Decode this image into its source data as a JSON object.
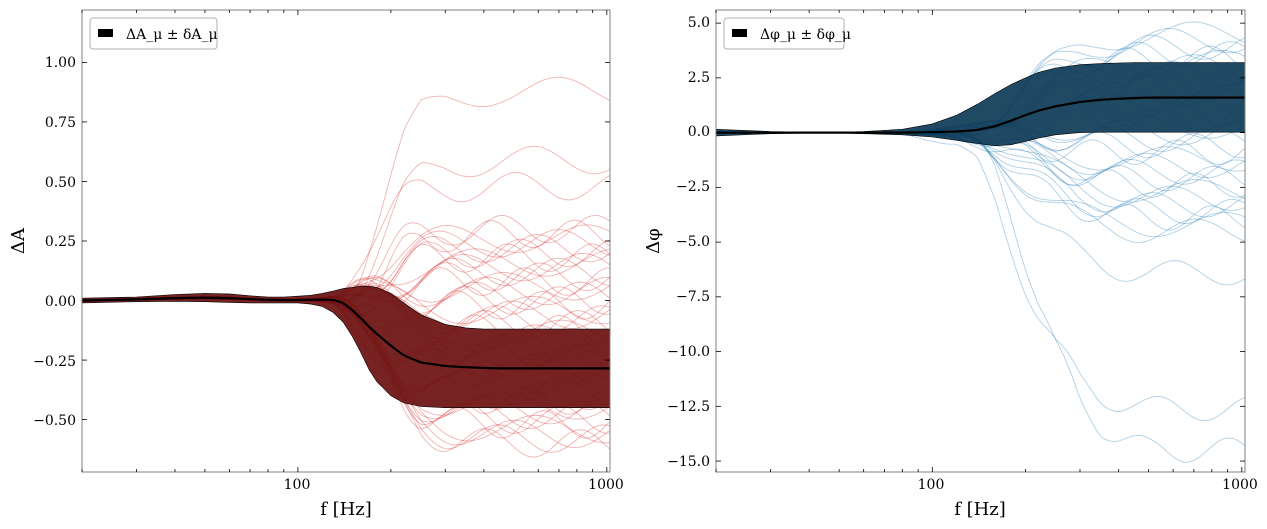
{
  "chart_data": [
    {
      "type": "line",
      "xscale": "log",
      "xlim": [
        20,
        1024
      ],
      "ylim": [
        -0.72,
        1.22
      ],
      "xlabel": "f [Hz]",
      "ylabel": "ΔA",
      "xticks": [
        100,
        1000
      ],
      "xtick_labels": [
        "100",
        "1000"
      ],
      "yticks": [
        -0.5,
        -0.25,
        0.0,
        0.25,
        0.5,
        0.75,
        1.0
      ],
      "ytick_labels": [
        "−0.50",
        "−0.25",
        "0.00",
        "0.25",
        "0.50",
        "0.75",
        "1.00"
      ],
      "legend": {
        "label": "ΔA_μ ± δA_μ",
        "position": "top-left"
      },
      "draw_color": "#d62728",
      "band_color": "#6b1010",
      "mean_curve": {
        "x": [
          20,
          30,
          40,
          50,
          60,
          70,
          80,
          90,
          100,
          110,
          120,
          130,
          140,
          150,
          160,
          170,
          180,
          200,
          220,
          250,
          300,
          350,
          400,
          450,
          500,
          600,
          700,
          800,
          1024
        ],
        "y": [
          0.0,
          0.005,
          0.01,
          0.012,
          0.01,
          0.006,
          0.003,
          0.002,
          0.002,
          0.003,
          0.004,
          0.003,
          -0.01,
          -0.04,
          -0.075,
          -0.11,
          -0.14,
          -0.19,
          -0.23,
          -0.26,
          -0.275,
          -0.28,
          -0.283,
          -0.285,
          -0.285,
          -0.285,
          -0.285,
          -0.285,
          -0.285
        ]
      },
      "band_upper": {
        "x": [
          20,
          30,
          40,
          50,
          60,
          70,
          80,
          90,
          100,
          110,
          120,
          130,
          140,
          150,
          160,
          170,
          180,
          200,
          220,
          250,
          300,
          350,
          400,
          450,
          500,
          600,
          700,
          800,
          1024
        ],
        "y": [
          0.01,
          0.015,
          0.025,
          0.03,
          0.028,
          0.02,
          0.015,
          0.015,
          0.018,
          0.022,
          0.03,
          0.04,
          0.05,
          0.055,
          0.06,
          0.06,
          0.055,
          0.03,
          -0.01,
          -0.06,
          -0.1,
          -0.115,
          -0.12,
          -0.12,
          -0.12,
          -0.12,
          -0.12,
          -0.12,
          -0.12
        ]
      },
      "band_lower": {
        "x": [
          20,
          30,
          40,
          50,
          60,
          70,
          80,
          90,
          100,
          110,
          120,
          130,
          140,
          150,
          160,
          170,
          180,
          200,
          220,
          250,
          300,
          350,
          400,
          450,
          500,
          600,
          700,
          800,
          1024
        ],
        "y": [
          -0.01,
          -0.005,
          -0.003,
          -0.005,
          -0.008,
          -0.01,
          -0.01,
          -0.01,
          -0.01,
          -0.015,
          -0.025,
          -0.05,
          -0.09,
          -0.15,
          -0.22,
          -0.29,
          -0.34,
          -0.4,
          -0.43,
          -0.445,
          -0.45,
          -0.45,
          -0.45,
          -0.45,
          -0.45,
          -0.45,
          -0.45,
          -0.45,
          -0.45
        ]
      },
      "draws_plateau_values": [
        0.88,
        0.59,
        0.48,
        0.3,
        0.28,
        0.26,
        0.24,
        0.22,
        0.2,
        0.18,
        0.16,
        0.14,
        0.12,
        0.1,
        0.08,
        0.06,
        0.04,
        0.02,
        0.0,
        -0.02,
        -0.04,
        -0.06,
        -0.08,
        -0.1,
        -0.12,
        -0.14,
        -0.16,
        -0.18,
        -0.2,
        -0.22,
        -0.24,
        -0.26,
        -0.28,
        -0.3,
        -0.32,
        -0.34,
        -0.36,
        -0.38,
        -0.4,
        -0.42,
        -0.44,
        -0.46,
        -0.48,
        -0.5,
        -0.52,
        -0.54,
        -0.56,
        -0.58,
        -0.6
      ]
    },
    {
      "type": "line",
      "xscale": "log",
      "xlim": [
        20,
        1024
      ],
      "ylim": [
        -15.5,
        5.6
      ],
      "xlabel": "f [Hz]",
      "ylabel": "Δφ",
      "xticks": [
        100,
        1000
      ],
      "xtick_labels": [
        "100",
        "1000"
      ],
      "yticks": [
        -15.0,
        -12.5,
        -10.0,
        -7.5,
        -5.0,
        -2.5,
        0.0,
        2.5,
        5.0
      ],
      "ytick_labels": [
        "−15.0",
        "−12.5",
        "−10.0",
        "−7.5",
        "−5.0",
        "−2.5",
        "0.0",
        "2.5",
        "5.0"
      ],
      "legend": {
        "label": "Δφ_μ ± δφ_μ",
        "position": "top-left"
      },
      "draw_color": "#1f77b4",
      "band_color": "#0d3a57",
      "mean_curve": {
        "x": [
          20,
          30,
          40,
          50,
          60,
          80,
          100,
          120,
          140,
          160,
          180,
          200,
          220,
          250,
          300,
          350,
          400,
          450,
          500,
          600,
          800,
          1024
        ],
        "y": [
          0.0,
          0.0,
          0.0,
          0.0,
          0.0,
          0.0,
          0.02,
          0.05,
          0.12,
          0.3,
          0.55,
          0.8,
          1.0,
          1.2,
          1.4,
          1.5,
          1.55,
          1.58,
          1.6,
          1.6,
          1.6,
          1.6
        ]
      },
      "band_upper": {
        "x": [
          20,
          30,
          40,
          50,
          60,
          80,
          100,
          120,
          140,
          160,
          180,
          200,
          220,
          250,
          300,
          350,
          400,
          450,
          500,
          600,
          800,
          1024
        ],
        "y": [
          0.15,
          0.05,
          0.02,
          0.02,
          0.05,
          0.15,
          0.4,
          0.8,
          1.3,
          1.8,
          2.2,
          2.5,
          2.75,
          2.95,
          3.1,
          3.15,
          3.18,
          3.2,
          3.2,
          3.2,
          3.2,
          3.2
        ]
      },
      "band_lower": {
        "x": [
          20,
          30,
          40,
          50,
          60,
          80,
          100,
          120,
          140,
          160,
          180,
          200,
          220,
          250,
          300,
          350,
          400,
          450,
          500,
          600,
          800,
          1024
        ],
        "y": [
          -0.15,
          -0.05,
          -0.02,
          -0.02,
          -0.05,
          -0.1,
          -0.2,
          -0.35,
          -0.5,
          -0.6,
          -0.55,
          -0.4,
          -0.25,
          -0.1,
          0.0,
          0.02,
          0.02,
          0.02,
          0.02,
          0.02,
          0.02,
          0.02
        ]
      },
      "draws_plateau_values": [
        4.5,
        4.2,
        3.9,
        3.6,
        3.4,
        3.2,
        3.0,
        2.7,
        2.4,
        2.1,
        1.8,
        1.5,
        1.2,
        0.9,
        0.6,
        0.3,
        0.0,
        -0.3,
        -0.6,
        -0.9,
        -1.2,
        -1.5,
        -1.8,
        -2.1,
        -2.4,
        -2.7,
        -3.0,
        -3.3,
        -3.6,
        -3.9,
        -4.2,
        -4.5,
        -6.4,
        -12.6,
        -14.5
      ]
    }
  ]
}
